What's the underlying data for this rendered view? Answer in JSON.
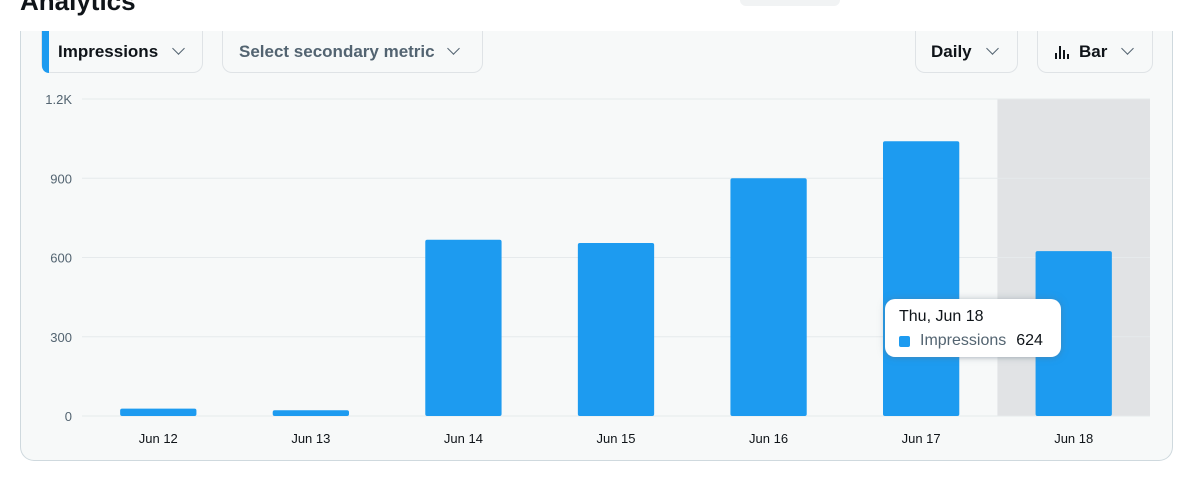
{
  "page": {
    "title": "Analytics"
  },
  "toolbar": {
    "primary_metric": "Impressions",
    "secondary_metric_placeholder": "Select secondary metric",
    "interval": "Daily",
    "chart_type": "Bar"
  },
  "colors": {
    "bar": "#1d9bf0",
    "highlight": "#e1e3e5",
    "grid": "#e6eaec",
    "axis_text": "#536471"
  },
  "tooltip": {
    "date": "Thu, Jun 18",
    "series_name": "Impressions",
    "value": "624"
  },
  "chart_data": {
    "type": "bar",
    "categories": [
      "Jun 12",
      "Jun 13",
      "Jun 14",
      "Jun 15",
      "Jun 16",
      "Jun 17",
      "Jun 18"
    ],
    "series": [
      {
        "name": "Impressions",
        "values": [
          28,
          22,
          667,
          655,
          900,
          1040,
          624
        ]
      }
    ],
    "ylim": [
      0,
      1200
    ],
    "yticks": [
      0,
      300,
      600,
      900,
      1200
    ],
    "ytick_labels": [
      "0",
      "300",
      "600",
      "900",
      "1.2K"
    ],
    "highlighted_category": "Jun 18",
    "grid": true
  }
}
